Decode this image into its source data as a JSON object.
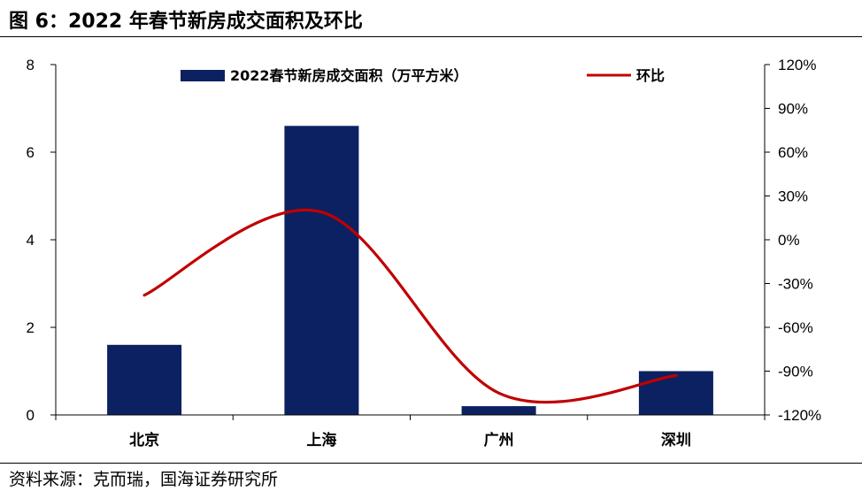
{
  "figure": {
    "title": "图 6：2022 年春节新房成交面积及环比",
    "source": "资料来源：克而瑞，国海证券研究所"
  },
  "colors": {
    "bar": "#0b2161",
    "line": "#c00000",
    "axis": "#000000"
  },
  "chart_data": {
    "type": "bar",
    "categories": [
      "北京",
      "上海",
      "广州",
      "深圳"
    ],
    "series": [
      {
        "name": "2022春节新房成交面积（万平方米）",
        "type": "bar",
        "axis": "left",
        "values": [
          1.6,
          6.6,
          0.2,
          1.0
        ]
      },
      {
        "name": "环比",
        "type": "line",
        "axis": "right",
        "smooth": true,
        "values": [
          -0.38,
          0.19,
          -1.05,
          -0.93
        ]
      }
    ],
    "y_left": {
      "min": 0,
      "max": 8,
      "ticks": [
        0,
        2,
        4,
        6,
        8
      ],
      "tick_labels": [
        "0",
        "2",
        "4",
        "6",
        "8"
      ]
    },
    "y_right": {
      "min": -1.2,
      "max": 1.2,
      "ticks": [
        -1.2,
        -0.9,
        -0.6,
        -0.3,
        0,
        0.3,
        0.6,
        0.9,
        1.2
      ],
      "tick_labels": [
        "-120%",
        "-90%",
        "-60%",
        "-30%",
        "0%",
        "30%",
        "60%",
        "90%",
        "120%"
      ]
    },
    "legend": {
      "position": "top",
      "labels": [
        "2022春节新房成交面积（万平方米）",
        "环比"
      ]
    },
    "grid": false
  }
}
